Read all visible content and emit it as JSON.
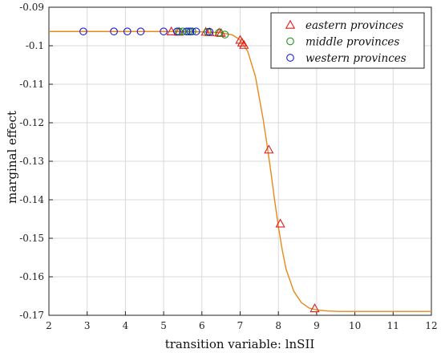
{
  "chart_data": {
    "type": "scatter",
    "xlabel": "transition variable: lnSII",
    "ylabel": "marginal effect",
    "xlim": [
      2,
      12
    ],
    "ylim": [
      -0.17,
      -0.09
    ],
    "xticks": [
      2,
      3,
      4,
      5,
      6,
      7,
      8,
      9,
      10,
      11,
      12
    ],
    "yticks": [
      -0.09,
      -0.1,
      -0.11,
      -0.12,
      -0.13,
      -0.14,
      -0.15,
      -0.16,
      -0.17
    ],
    "xtick_labels": [
      "2",
      "3",
      "4",
      "5",
      "6",
      "7",
      "8",
      "9",
      "10",
      "11",
      "12"
    ],
    "ytick_labels": [
      "-0.09",
      "-0.1",
      "-0.11",
      "-0.12",
      "-0.13",
      "-0.14",
      "-0.15",
      "-0.16",
      "-0.17"
    ],
    "grid": true,
    "legend_position": "top-right",
    "curve": {
      "color": "#e8891b",
      "x": [
        2,
        5,
        6,
        6.5,
        6.8,
        7.0,
        7.2,
        7.4,
        7.6,
        7.7,
        7.8,
        7.9,
        8.0,
        8.1,
        8.2,
        8.4,
        8.6,
        8.8,
        9.0,
        9.3,
        9.6,
        10,
        11,
        12
      ],
      "y": [
        -0.0963,
        -0.0963,
        -0.0964,
        -0.0966,
        -0.0972,
        -0.0985,
        -0.1015,
        -0.108,
        -0.119,
        -0.1255,
        -0.1325,
        -0.14,
        -0.147,
        -0.153,
        -0.158,
        -0.1637,
        -0.1667,
        -0.1681,
        -0.1686,
        -0.1689,
        -0.169,
        -0.169,
        -0.169,
        -0.169
      ]
    },
    "series": [
      {
        "name": "eastern provinces",
        "marker": "triangle",
        "color": "#e01c1c",
        "x": [
          5.2,
          5.4,
          6.1,
          6.2,
          6.45,
          6.5,
          7.0,
          7.05,
          7.1,
          7.75,
          8.05,
          8.95
        ],
        "y": [
          -0.0963,
          -0.0964,
          -0.0964,
          -0.0965,
          -0.0966,
          -0.0967,
          -0.0985,
          -0.0992,
          -0.0998,
          -0.127,
          -0.1462,
          -0.1682
        ]
      },
      {
        "name": "middle provinces",
        "marker": "circle",
        "color": "#1f8f1f",
        "x": [
          5.4,
          5.5,
          5.65,
          5.75,
          6.15,
          6.45,
          6.6
        ],
        "y": [
          -0.0963,
          -0.0963,
          -0.0963,
          -0.0963,
          -0.0964,
          -0.0966,
          -0.0971
        ]
      },
      {
        "name": "western provinces",
        "marker": "circle",
        "color": "#1a1ad6",
        "x": [
          2.9,
          3.7,
          4.05,
          4.4,
          5.0,
          5.35,
          5.6,
          5.7,
          5.85,
          6.2
        ],
        "y": [
          -0.0963,
          -0.0963,
          -0.0963,
          -0.0963,
          -0.0963,
          -0.0963,
          -0.0963,
          -0.0963,
          -0.0963,
          -0.0964
        ]
      }
    ]
  }
}
